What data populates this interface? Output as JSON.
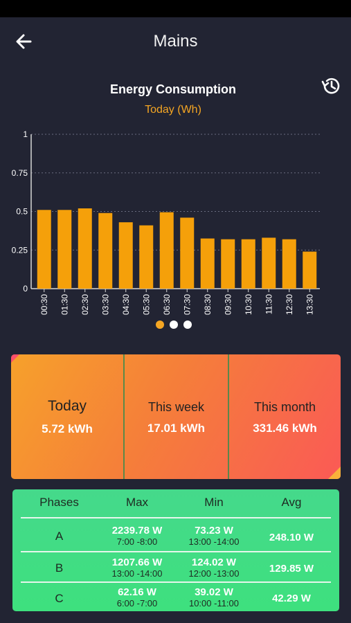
{
  "header": {
    "title": "Mains"
  },
  "chart_data": {
    "type": "bar",
    "title": "Energy Consumption",
    "subtitle": "Today (Wh)",
    "categories": [
      "00:30",
      "01:30",
      "02:30",
      "03:30",
      "04:30",
      "05:30",
      "06:30",
      "07:30",
      "08:30",
      "09:30",
      "10:30",
      "11:30",
      "12:30",
      "13:30"
    ],
    "values": [
      0.51,
      0.51,
      0.52,
      0.49,
      0.43,
      0.41,
      0.495,
      0.46,
      0.325,
      0.32,
      0.32,
      0.33,
      0.32,
      0.24
    ],
    "ylim": [
      0,
      1
    ],
    "yticks": [
      "0",
      "0.25",
      "0.5",
      "0.75",
      "1"
    ],
    "ytick_values": [
      0,
      0.25,
      0.5,
      0.75,
      1
    ],
    "grid": true,
    "bar_color": "#f5a00a"
  },
  "pager": {
    "count": 3,
    "active": 0,
    "active_color": "#f5a623",
    "inactive_color": "#ffffff"
  },
  "summary": {
    "today": {
      "label": "Today",
      "value": "5.72 kWh"
    },
    "week": {
      "label": "This week",
      "value": "17.01 kWh"
    },
    "month": {
      "label": "This month",
      "value": "331.46 kWh"
    }
  },
  "phases": {
    "headers": [
      "Phases",
      "Max",
      "Min",
      "Avg"
    ],
    "rows": [
      {
        "name": "A",
        "max": "2239.78 W",
        "max_time": "7:00 -8:00",
        "min": "73.23 W",
        "min_time": "13:00 -14:00",
        "avg": "248.10 W"
      },
      {
        "name": "B",
        "max": "1207.66 W",
        "max_time": "13:00 -14:00",
        "min": "124.02 W",
        "min_time": "12:00 -13:00",
        "avg": "129.85 W"
      },
      {
        "name": "C",
        "max": "62.16 W",
        "max_time": "6:00 -7:00",
        "min": "39.02 W",
        "min_time": "10:00 -11:00",
        "avg": "42.29 W"
      }
    ]
  },
  "icons": {
    "back": "arrow-left-icon",
    "history": "history-clock-icon"
  }
}
